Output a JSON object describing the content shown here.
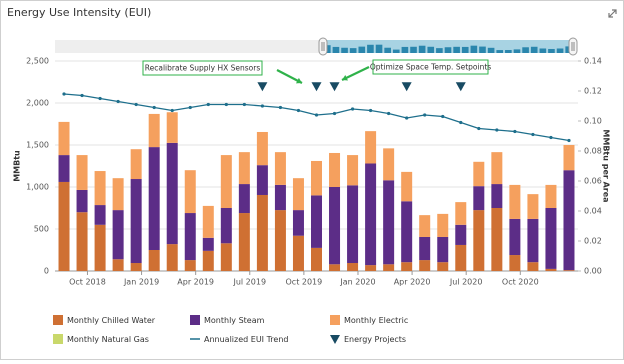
{
  "chart_data": {
    "type": "bar",
    "title": "Energy Use Intensity (EUI)",
    "y_label": "MMBtu",
    "y2_label": "MMBtu per Area",
    "categories": [
      null,
      null,
      "Oct 2018",
      null,
      null,
      "Jan 2019",
      null,
      null,
      "Apr 2019",
      null,
      null,
      "Jul 2019",
      null,
      null,
      "Oct 2019",
      null,
      null,
      "Jan 2020",
      null,
      null,
      "Apr 2020",
      null,
      null,
      "Jul 2020",
      null,
      null,
      "Oct 2020",
      null,
      null
    ],
    "series": [
      {
        "name": "Monthly Chilled Water",
        "type": "bar",
        "color": "#cf7033",
        "values": [
          1060,
          700,
          550,
          140,
          95,
          250,
          320,
          130,
          240,
          330,
          690,
          905,
          725,
          420,
          275,
          80,
          95,
          70,
          80,
          105,
          130,
          105,
          310,
          725,
          750,
          190,
          105,
          25,
          10
        ]
      },
      {
        "name": "Monthly Steam",
        "type": "bar",
        "color": "#5c2d87",
        "values": [
          320,
          265,
          235,
          585,
          1000,
          1225,
          1205,
          560,
          155,
          420,
          345,
          355,
          300,
          305,
          625,
          920,
          925,
          1210,
          1000,
          725,
          275,
          300,
          240,
          285,
          285,
          430,
          515,
          725,
          1190
        ]
      },
      {
        "name": "Monthly Electric",
        "type": "bar",
        "color": "#f5a05e",
        "values": [
          395,
          415,
          405,
          380,
          355,
          395,
          365,
          510,
          380,
          630,
          380,
          395,
          390,
          380,
          410,
          405,
          360,
          385,
          380,
          350,
          260,
          275,
          270,
          290,
          380,
          405,
          295,
          275,
          300
        ]
      },
      {
        "name": "Monthly Natural Gas",
        "type": "bar",
        "color": "#c9d86b",
        "values": [
          0,
          0,
          0,
          0,
          0,
          0,
          0,
          0,
          0,
          0,
          0,
          0,
          0,
          0,
          0,
          0,
          0,
          0,
          0,
          0,
          0,
          0,
          0,
          0,
          0,
          0,
          0,
          0,
          0
        ]
      },
      {
        "name": "Annualized EUI Trend",
        "type": "line",
        "axis": "y2",
        "color": "#1e6f8c",
        "values": [
          0.118,
          0.117,
          0.115,
          0.113,
          0.111,
          0.109,
          0.107,
          0.109,
          0.111,
          0.111,
          0.111,
          0.11,
          0.109,
          0.107,
          0.104,
          0.105,
          0.108,
          0.107,
          0.105,
          0.102,
          0.104,
          0.103,
          0.099,
          0.095,
          0.094,
          0.093,
          0.091,
          0.089,
          0.087
        ]
      },
      {
        "name": "Energy Projects",
        "type": "marker",
        "color": "#184b63",
        "values": [
          null,
          null,
          null,
          null,
          null,
          null,
          null,
          null,
          null,
          null,
          null,
          2200,
          null,
          null,
          2200,
          2200,
          null,
          null,
          null,
          2200,
          null,
          null,
          2200,
          null,
          null,
          null,
          null,
          null,
          null
        ]
      }
    ],
    "annotations": [
      "Recalibrate Supply HX Sensors",
      "Optimize Space Temp. Setpoints"
    ],
    "ylim": [
      0,
      2500
    ],
    "yticks": [
      0,
      500,
      {
        "value": 1000,
        "label": "1,000"
      },
      {
        "value": 1500,
        "label": "1,500"
      },
      {
        "value": 2000,
        "label": "2,000"
      },
      {
        "value": 2500,
        "label": "2,500"
      }
    ],
    "y2lim": [
      0,
      0.14
    ],
    "y2ticks": [
      {
        "value": 0,
        "label": "0.00"
      },
      {
        "value": 0.02,
        "label": "0.02"
      },
      {
        "value": 0.04,
        "label": "0.04"
      },
      {
        "value": 0.06,
        "label": "0.06"
      },
      {
        "value": 0.08,
        "label": "0.08"
      },
      {
        "value": 0.1,
        "label": "0.10"
      },
      {
        "value": 0.12,
        "label": "0.12"
      },
      {
        "value": 0.14,
        "label": "0.14"
      }
    ],
    "grid": true
  }
}
